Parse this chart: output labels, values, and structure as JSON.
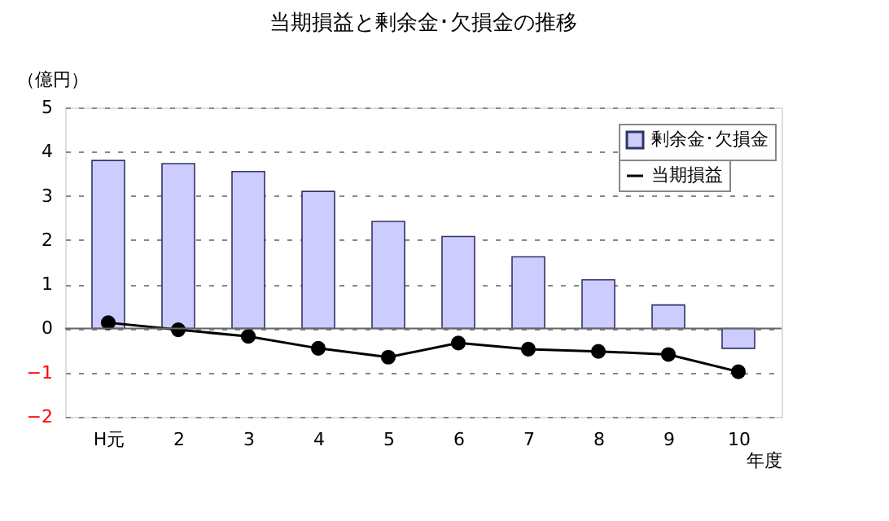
{
  "chart_data": {
    "type": "bar",
    "title": "当期損益と剰余金･欠損金の推移",
    "ylabel": "（億円）",
    "xlabel": "年度",
    "categories": [
      "H元",
      "2",
      "3",
      "4",
      "5",
      "6",
      "7",
      "8",
      "9",
      "10"
    ],
    "series": [
      {
        "name": "剰余金･欠損金",
        "color": "#ccccff",
        "values": [
          3.8,
          3.73,
          3.55,
          3.1,
          2.42,
          2.08,
          1.62,
          1.1,
          0.53,
          -0.45
        ]
      },
      {
        "name": "当期損益",
        "type": "line",
        "color": "#000000",
        "values": [
          0.13,
          -0.03,
          -0.18,
          -0.45,
          -0.65,
          -0.33,
          -0.47,
          -0.52,
          -0.59,
          -0.98
        ]
      }
    ],
    "ylim": [
      -2,
      5
    ],
    "yticks": [
      -2,
      -1,
      0,
      1,
      2,
      3,
      4,
      5
    ],
    "grid": "y",
    "legend": "top right",
    "marker": "circle",
    "line_style": "solid"
  }
}
